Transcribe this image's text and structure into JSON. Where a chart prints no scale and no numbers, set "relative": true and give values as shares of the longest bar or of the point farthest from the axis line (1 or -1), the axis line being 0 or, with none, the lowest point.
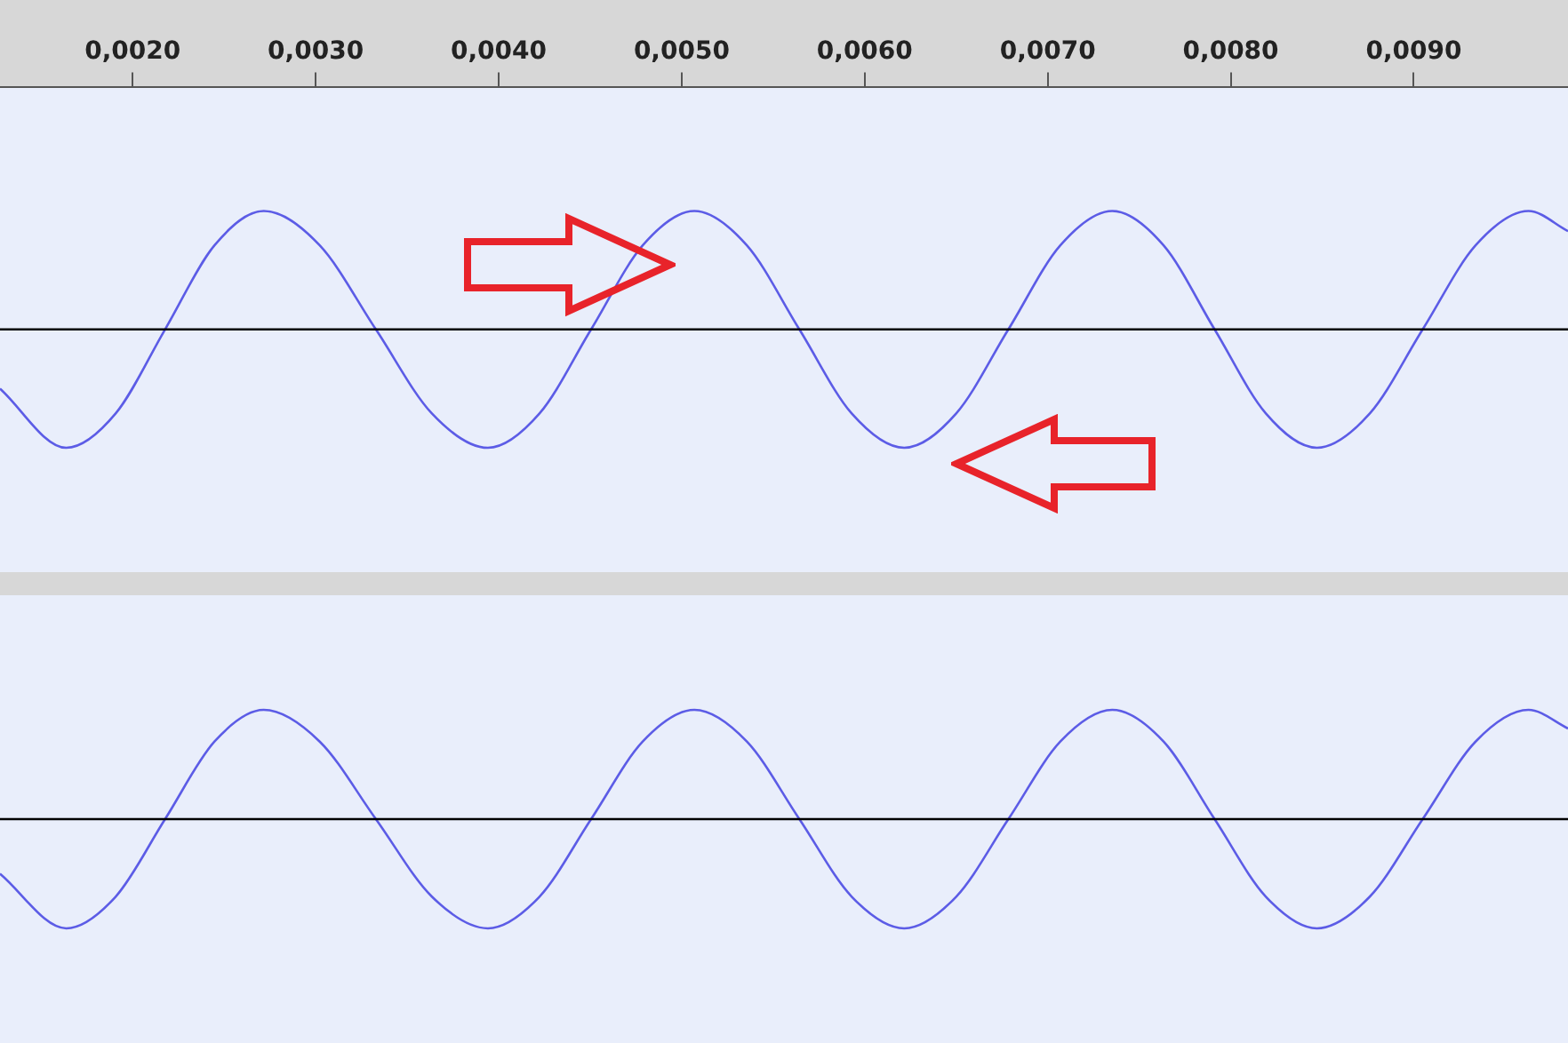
{
  "chart_data": [
    {
      "type": "line",
      "relative": true,
      "tick_labels": "x",
      "marker": "none",
      "line_style": "solid",
      "grid": false,
      "legend": false,
      "xlim": [
        0.001275,
        0.009843
      ],
      "xticks": [
        {
          "value": 0.002,
          "label": "0,0020"
        },
        {
          "value": 0.003,
          "label": "0,0030"
        },
        {
          "value": 0.004,
          "label": "0,0040"
        },
        {
          "value": 0.005,
          "label": "0,0050"
        },
        {
          "value": 0.006,
          "label": "0,0060"
        },
        {
          "value": 0.007,
          "label": "0,0070"
        },
        {
          "value": 0.008,
          "label": "0,0080"
        },
        {
          "value": 0.009,
          "label": "0,0090"
        }
      ],
      "ref_lines": [
        {
          "axis": "y",
          "value": 0,
          "color": "#000000"
        }
      ],
      "series": [
        {
          "color": "#5c5ce6",
          "x": [
            0.001275,
            0.001637,
            0.001907,
            0.002177,
            0.002447,
            0.002716,
            0.003022,
            0.003329,
            0.003635,
            0.003941,
            0.004223,
            0.004505,
            0.004787,
            0.005069,
            0.005356,
            0.005643,
            0.005929,
            0.006216,
            0.0065,
            0.006785,
            0.007069,
            0.007353,
            0.007633,
            0.007912,
            0.008192,
            0.008471,
            0.00876,
            0.009049,
            0.009338,
            0.009627,
            0.009843
          ],
          "values": [
            -0.5,
            -1,
            -0.71,
            0,
            0.71,
            1,
            0.71,
            0,
            -0.71,
            -1,
            -0.71,
            0,
            0.71,
            1,
            0.71,
            0,
            -0.71,
            -1,
            -0.71,
            0,
            0.71,
            1,
            0.71,
            0,
            -0.71,
            -1,
            -0.71,
            0,
            0.71,
            1,
            0.83
          ]
        }
      ]
    },
    {
      "type": "line",
      "relative": true,
      "tick_labels": false,
      "marker": "none",
      "line_style": "solid",
      "grid": false,
      "legend": false,
      "xlim": [
        0.001275,
        0.009843
      ],
      "ref_lines": [
        {
          "axis": "y",
          "value": 0,
          "color": "#000000"
        }
      ],
      "series": [
        {
          "color": "#5c5ce6",
          "x": [
            0.001275,
            0.001637,
            0.001907,
            0.002177,
            0.002447,
            0.002716,
            0.003022,
            0.003329,
            0.003635,
            0.003941,
            0.004223,
            0.004505,
            0.004787,
            0.005069,
            0.005356,
            0.005643,
            0.005929,
            0.006216,
            0.0065,
            0.006785,
            0.007069,
            0.007353,
            0.007633,
            0.007912,
            0.008192,
            0.008471,
            0.00876,
            0.009049,
            0.009338,
            0.009627,
            0.009843
          ],
          "values": [
            -0.5,
            -1,
            -0.71,
            0,
            0.71,
            1,
            0.71,
            0,
            -0.71,
            -1,
            -0.71,
            0,
            0.71,
            1,
            0.71,
            0,
            -0.71,
            -1,
            -0.71,
            0,
            0.71,
            1,
            0.71,
            0,
            -0.71,
            -1,
            -0.71,
            0,
            0.71,
            1,
            0.83
          ]
        }
      ]
    }
  ]
}
